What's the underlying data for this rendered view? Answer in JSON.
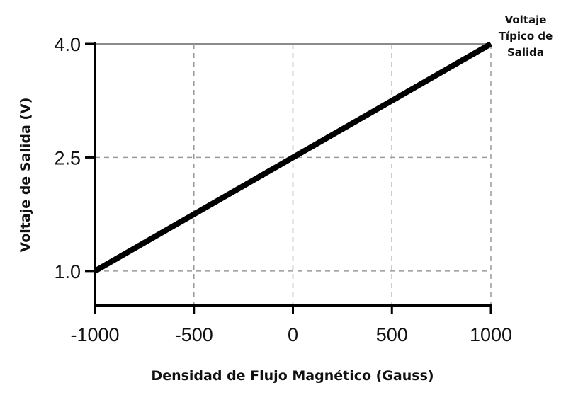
{
  "chart_data": {
    "type": "line",
    "title": "",
    "xlabel": "Densidad de Flujo Magnético (Gauss)",
    "ylabel": "Voltaje de Salida (V)",
    "x_ticks": [
      "-1000",
      "-500",
      "0",
      "500",
      "1000"
    ],
    "x_tick_values": [
      -1000,
      -500,
      0,
      500,
      1000
    ],
    "y_ticks": [
      "1.0",
      "2.5",
      "4.0"
    ],
    "y_tick_values": [
      1.0,
      2.5,
      4.0
    ],
    "xlim": [
      -1000,
      1000
    ],
    "ylim": [
      0.55,
      4.0
    ],
    "grid": true,
    "series": [
      {
        "x": [
          -1000,
          1000
        ],
        "y": [
          1.0,
          4.0
        ],
        "color": "#000000"
      }
    ],
    "annotation": {
      "lines": [
        "Voltaje",
        "Típico de",
        "Salida"
      ]
    }
  }
}
